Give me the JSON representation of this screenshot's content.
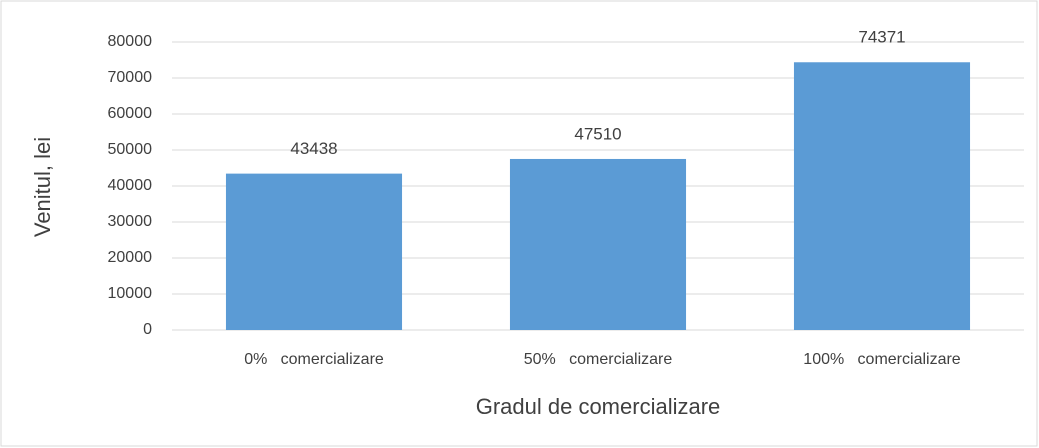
{
  "chart_data": {
    "type": "bar",
    "categories": [
      "0%   comercializare",
      "50%   comercializare",
      "100%   comercializare"
    ],
    "values": [
      43438,
      47510,
      74371
    ],
    "color": "#5b9bd5",
    "x_label": "Gradul de comercializare",
    "y_label": "Venitul, lei",
    "ylim": [
      0,
      80000
    ],
    "yticks": [
      0,
      10000,
      20000,
      30000,
      40000,
      50000,
      60000,
      70000,
      80000
    ],
    "grid": true
  }
}
